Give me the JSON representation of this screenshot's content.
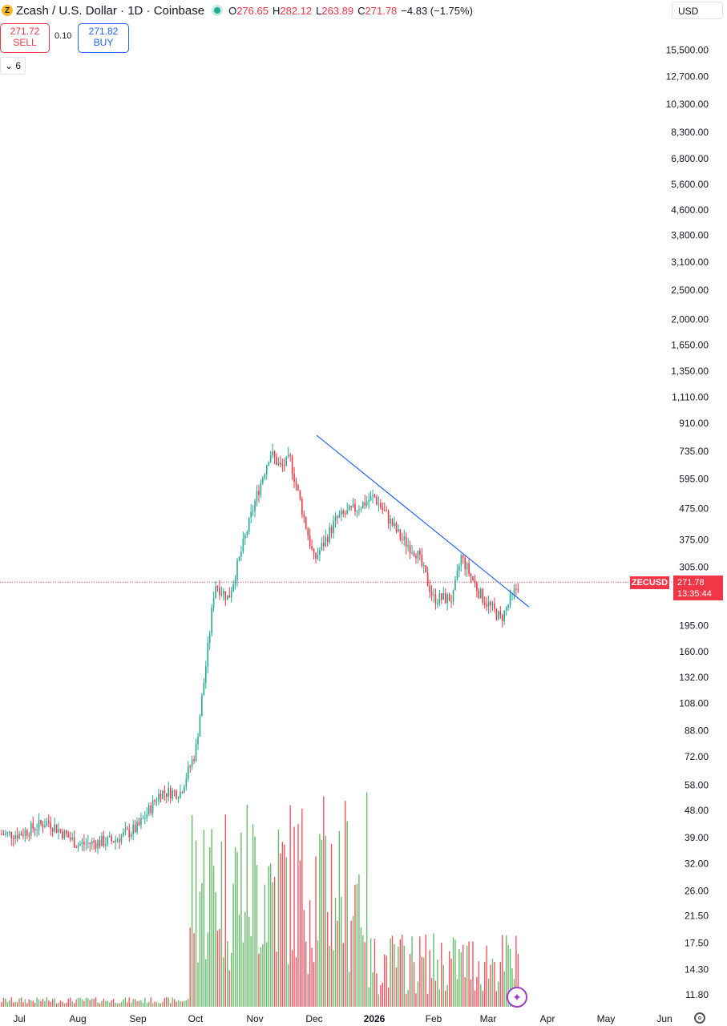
{
  "header": {
    "symbol": "Zcash / U.S. Dollar · 1D · Coinbase",
    "coin_letter": "Z",
    "open_label": "O",
    "open": "276.65",
    "high_label": "H",
    "high": "282.12",
    "low_label": "L",
    "low": "263.89",
    "close_label": "C",
    "close": "271.78",
    "change": "−4.83 (−1.75%)"
  },
  "trade": {
    "sell_price": "271.72",
    "sell_label": "SELL",
    "spread": "0.10",
    "buy_price": "271.82",
    "buy_label": "BUY"
  },
  "indicators_toggle": "6",
  "currency": "USD",
  "last_price": {
    "symbol_tag": "ZECUSD",
    "price": "271.78",
    "countdown": "13:35:44"
  },
  "colors": {
    "up": "#22ab94",
    "down": "#f23645",
    "vol_up": "#4caf50",
    "vol_down": "#f23645",
    "trendline": "#2962ff",
    "price_line": "#f23645"
  },
  "chart_data": {
    "type": "candlestick",
    "symbol": "Zcash / U.S. Dollar",
    "interval": "1D",
    "exchange": "Coinbase",
    "y_scale": "log",
    "y_ticks": [
      "11.80",
      "14.30",
      "17.50",
      "21.50",
      "26.00",
      "32.00",
      "39.00",
      "48.00",
      "58.00",
      "72.00",
      "88.00",
      "108.00",
      "132.00",
      "160.00",
      "195.00",
      "305.00",
      "375.00",
      "475.00",
      "595.00",
      "735.00",
      "910.00",
      "1,110.00",
      "1,350.00",
      "1,650.00",
      "2,000.00",
      "2,500.00",
      "3,100.00",
      "3,800.00",
      "4,600.00",
      "5,600.00",
      "6,800.00",
      "8,300.00",
      "10,300.00",
      "12,700.00",
      "15,500.00"
    ],
    "x_ticks": [
      "Jul",
      "Aug",
      "Sep",
      "Oct",
      "Nov",
      "Dec",
      "2026",
      "Feb",
      "Mar",
      "Apr",
      "May",
      "Jun"
    ],
    "approx_closes": [
      {
        "date": "Jul",
        "close": 40
      },
      {
        "date": "Aug",
        "close": 38
      },
      {
        "date": "Sep",
        "close": 42
      },
      {
        "date": "Early Oct",
        "close": 75
      },
      {
        "date": "Mid Oct",
        "close": 270
      },
      {
        "date": "Nov",
        "close": 500
      },
      {
        "date": "Mid Nov",
        "close": 700
      },
      {
        "date": "Dec",
        "close": 320
      },
      {
        "date": "Late Dec",
        "close": 520
      },
      {
        "date": "Feb",
        "close": 240
      },
      {
        "date": "Mid Feb",
        "close": 330
      },
      {
        "date": "Mar",
        "close": 210
      },
      {
        "date": "Mid Mar",
        "close": 271.78
      }
    ],
    "trendline": {
      "from": {
        "date": "Late Nov",
        "price": 830
      },
      "to": {
        "date": "Mid Mar",
        "price": 225
      }
    },
    "last_close": 271.78,
    "volume_present": true
  }
}
